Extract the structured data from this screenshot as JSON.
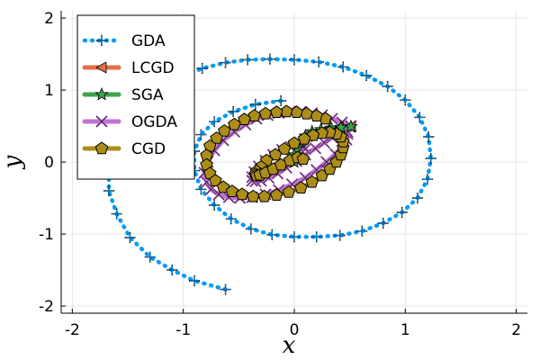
{
  "chart_data": {
    "type": "line",
    "title": "",
    "xlabel": "x",
    "ylabel": "y",
    "xlim": [
      -2.1,
      2.1
    ],
    "ylim": [
      -2.1,
      2.1
    ],
    "xticks": [
      -2,
      -1,
      0,
      1,
      2
    ],
    "yticks": [
      -2,
      -1,
      0,
      1,
      2
    ],
    "xtick_labels": [
      "-2",
      "-1",
      "0",
      "1",
      "2"
    ],
    "ytick_labels": [
      "-2",
      "-1",
      "0",
      "1",
      "2"
    ],
    "grid": true,
    "legend_position": "top-left",
    "series": [
      {
        "name": "GDA",
        "color": "#009af9",
        "line": "dotted",
        "marker": "plus",
        "x": [
          -0.62,
          -0.9,
          -1.1,
          -1.3,
          -1.48,
          -1.6,
          -1.67,
          -1.67,
          -1.6,
          -1.5,
          -1.35,
          -1.2,
          -1.02,
          -0.83,
          -0.62,
          -0.42,
          -0.22,
          0.0,
          0.22,
          0.44,
          0.65,
          0.84,
          1.0,
          1.13,
          1.21,
          1.23,
          1.2,
          1.11,
          0.97,
          0.8,
          0.61,
          0.41,
          0.2,
          0.0,
          -0.2,
          -0.39,
          -0.57,
          -0.72,
          -0.84,
          -0.9,
          -0.9,
          -0.84,
          -0.72,
          -0.55,
          -0.35,
          -0.12
        ],
        "y": [
          -1.77,
          -1.65,
          -1.5,
          -1.32,
          -1.05,
          -0.72,
          -0.4,
          -0.05,
          0.28,
          0.55,
          0.8,
          1.0,
          1.17,
          1.3,
          1.38,
          1.42,
          1.43,
          1.42,
          1.39,
          1.32,
          1.2,
          1.05,
          0.86,
          0.62,
          0.35,
          0.05,
          -0.24,
          -0.5,
          -0.7,
          -0.85,
          -0.96,
          -1.02,
          -1.04,
          -1.04,
          -1.01,
          -0.93,
          -0.79,
          -0.6,
          -0.38,
          -0.12,
          0.15,
          0.38,
          0.56,
          0.7,
          0.8,
          0.85
        ]
      },
      {
        "name": "LCGD",
        "color": "#e26f46",
        "line": "solid",
        "marker": "triangle-left",
        "x": [
          0.51,
          0.4,
          0.3,
          0.2,
          0.12,
          0.05
        ],
        "y": [
          0.49,
          0.48,
          0.46,
          0.42,
          0.36,
          0.28
        ]
      },
      {
        "name": "SGA",
        "color": "#3da44d",
        "line": "solid",
        "marker": "star",
        "x": [
          0.51,
          0.42,
          0.33,
          0.24,
          0.16,
          0.1,
          0.05,
          0.02,
          0.0,
          -0.01,
          0.0
        ],
        "y": [
          0.49,
          0.48,
          0.47,
          0.45,
          0.42,
          0.36,
          0.28,
          0.18,
          0.1,
          0.03,
          0.0
        ]
      },
      {
        "name": "OGDA",
        "color": "#c271d2",
        "line": "solid",
        "marker": "x",
        "x": [
          0.51,
          0.43,
          0.34,
          0.25,
          0.16,
          0.06,
          -0.04,
          -0.14,
          -0.24,
          -0.34,
          -0.44,
          -0.54,
          -0.64,
          -0.72,
          -0.78,
          -0.81,
          -0.79,
          -0.75,
          -0.68,
          -0.59,
          -0.49,
          -0.38,
          -0.26,
          -0.14,
          -0.02,
          0.1,
          0.2,
          0.29,
          0.37,
          0.43,
          0.47,
          0.48,
          0.48,
          0.45,
          0.4,
          0.34,
          0.27,
          0.19,
          0.1,
          0.02,
          -0.07,
          -0.15,
          -0.23,
          -0.3,
          -0.35,
          -0.38,
          -0.38,
          -0.36,
          -0.32,
          -0.26,
          -0.19,
          -0.11,
          -0.03,
          0.04,
          0.09,
          0.1
        ],
        "y": [
          0.5,
          0.55,
          0.6,
          0.65,
          0.68,
          0.7,
          0.7,
          0.68,
          0.65,
          0.6,
          0.52,
          0.42,
          0.3,
          0.16,
          0.0,
          -0.15,
          -0.28,
          -0.38,
          -0.45,
          -0.49,
          -0.5,
          -0.49,
          -0.45,
          -0.39,
          -0.31,
          -0.22,
          -0.11,
          0.0,
          0.11,
          0.22,
          0.31,
          0.39,
          0.42,
          0.42,
          0.39,
          0.34,
          0.27,
          0.19,
          0.1,
          0.01,
          -0.08,
          -0.16,
          -0.22,
          -0.26,
          -0.27,
          -0.26,
          -0.21,
          -0.14,
          -0.06,
          0.02,
          0.1,
          0.17,
          0.21,
          0.22,
          0.21,
          0.18
        ]
      },
      {
        "name": "CGD",
        "color": "#ac8d18",
        "line": "solid",
        "marker": "pentagon",
        "x": [
          0.28,
          0.2,
          0.11,
          0.02,
          -0.07,
          -0.16,
          -0.26,
          -0.36,
          -0.45,
          -0.54,
          -0.63,
          -0.7,
          -0.76,
          -0.79,
          -0.79,
          -0.76,
          -0.71,
          -0.64,
          -0.56,
          -0.47,
          -0.37,
          -0.27,
          -0.16,
          -0.05,
          0.06,
          0.16,
          0.25,
          0.32,
          0.38,
          0.42,
          0.44,
          0.44,
          0.42,
          0.38,
          0.32,
          0.25,
          0.17,
          0.09,
          0.0,
          -0.09,
          -0.17,
          -0.25,
          -0.3,
          -0.34,
          -0.35,
          -0.34,
          -0.31,
          -0.26,
          -0.19,
          -0.12,
          -0.04,
          0.03,
          0.08
        ],
        "y": [
          0.6,
          0.64,
          0.67,
          0.69,
          0.7,
          0.69,
          0.67,
          0.64,
          0.59,
          0.52,
          0.43,
          0.33,
          0.22,
          0.09,
          -0.04,
          -0.16,
          -0.26,
          -0.35,
          -0.41,
          -0.45,
          -0.48,
          -0.48,
          -0.46,
          -0.42,
          -0.36,
          -0.28,
          -0.19,
          -0.1,
          0.0,
          0.1,
          0.2,
          0.28,
          0.35,
          0.39,
          0.41,
          0.4,
          0.37,
          0.32,
          0.26,
          0.18,
          0.1,
          0.02,
          -0.07,
          -0.13,
          -0.17,
          -0.19,
          -0.18,
          -0.15,
          -0.1,
          -0.04,
          0.02,
          0.06,
          0.04
        ]
      }
    ]
  }
}
